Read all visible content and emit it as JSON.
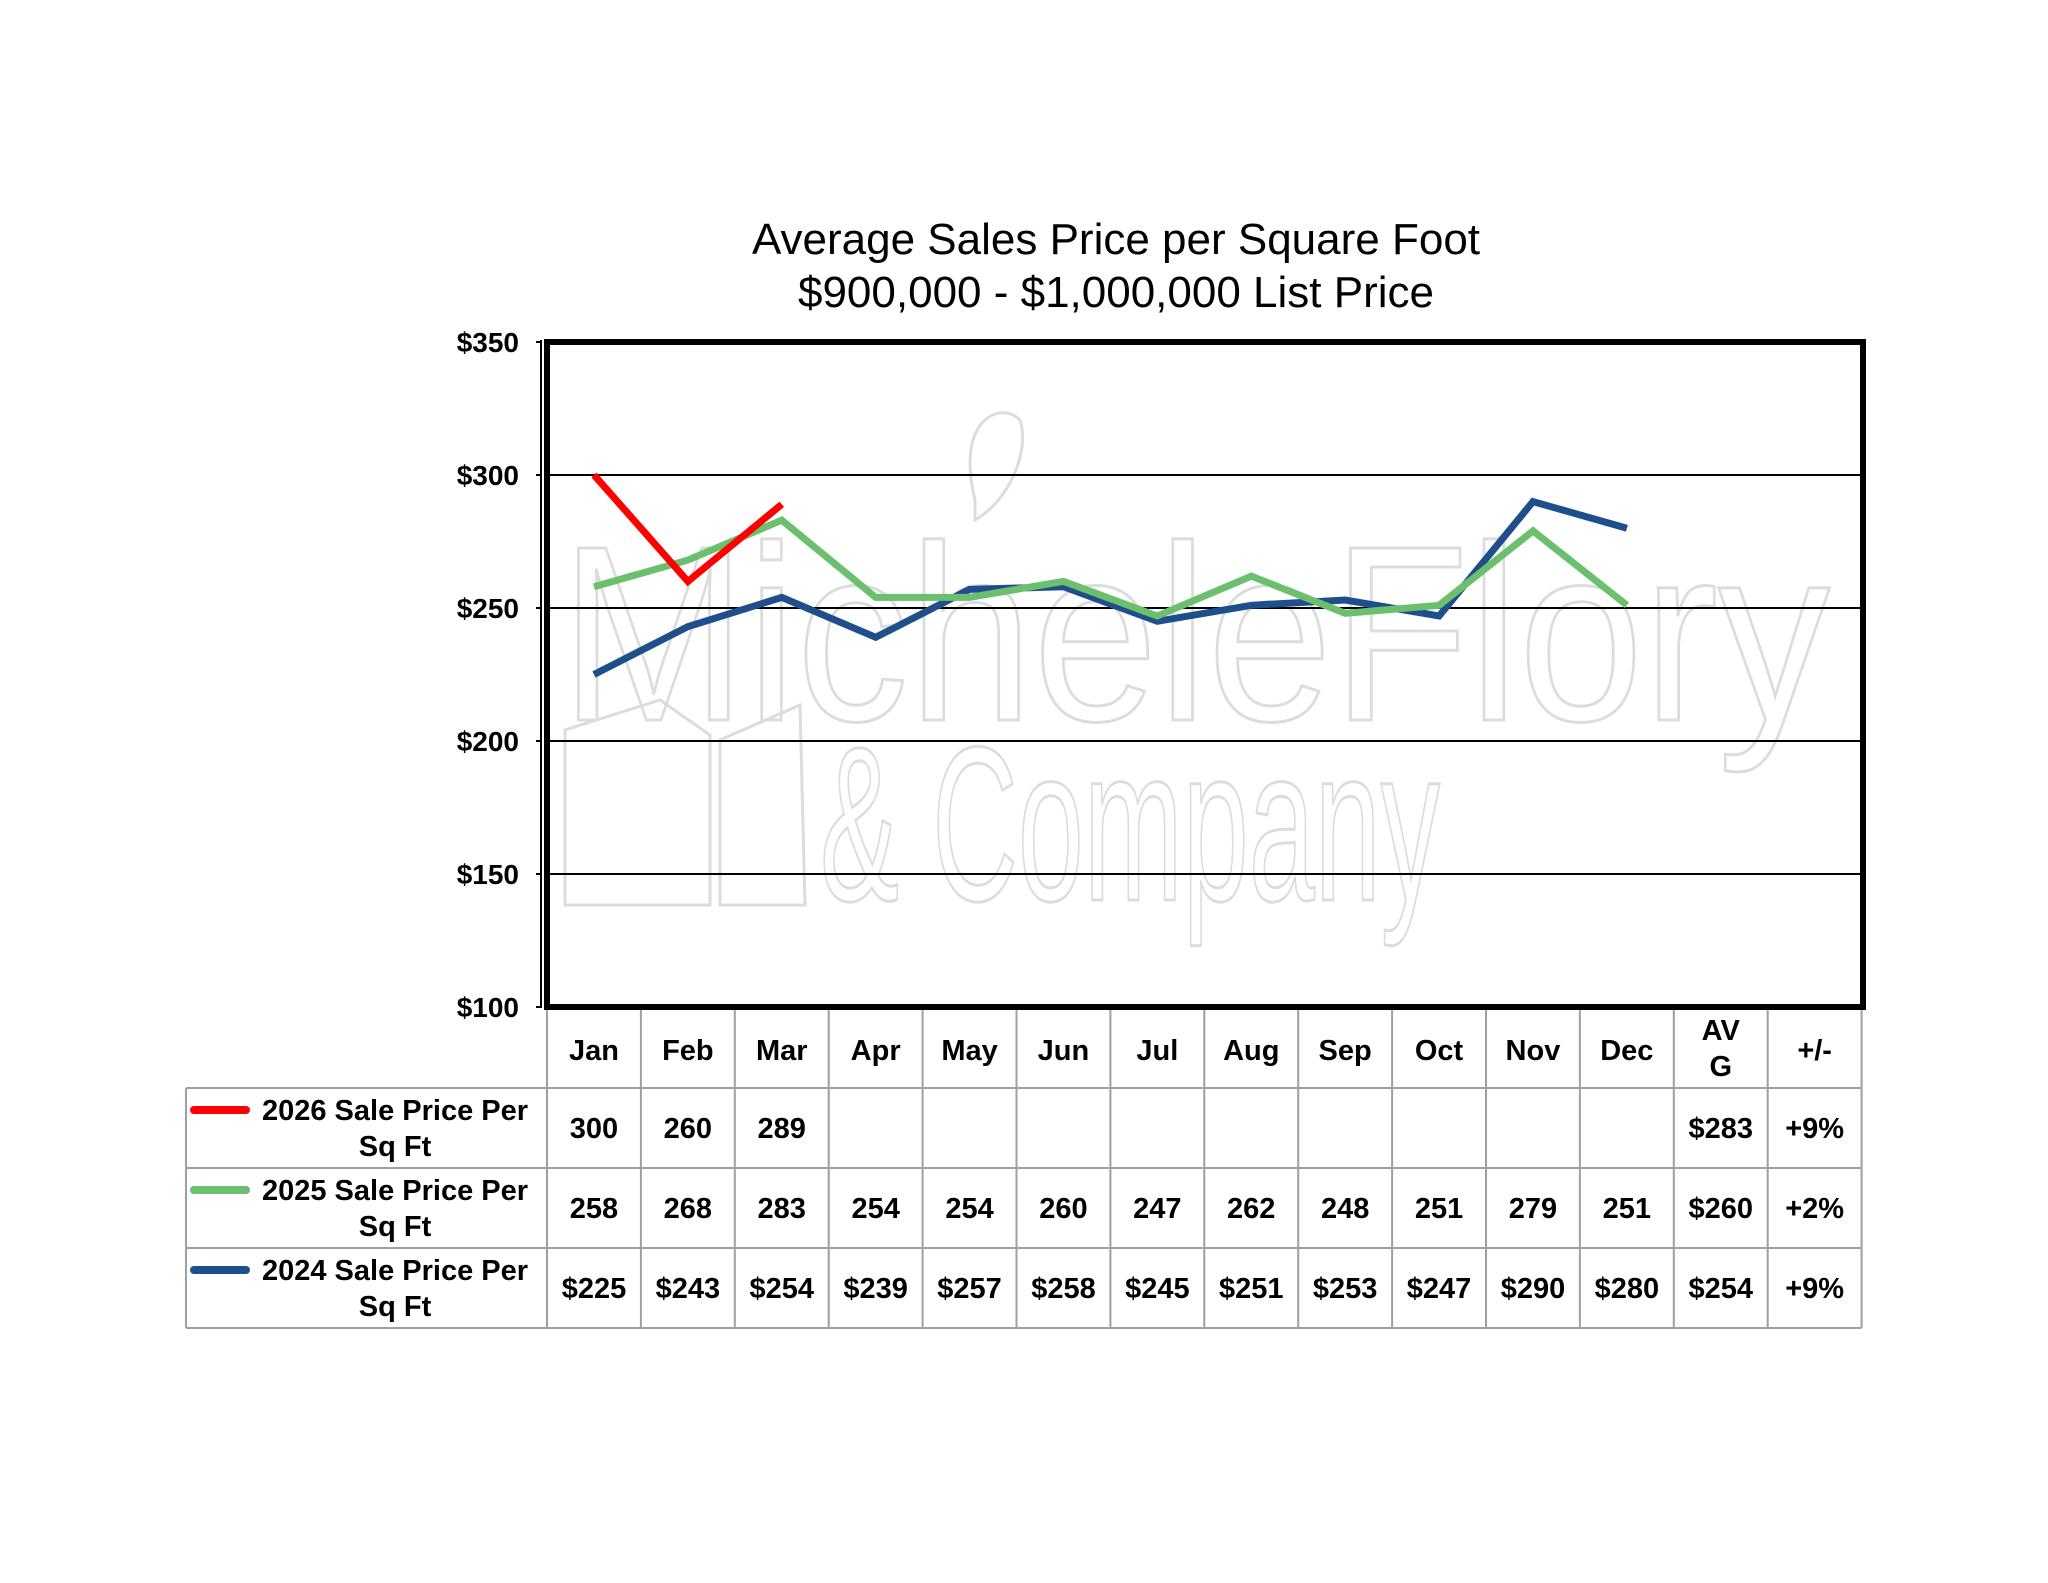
{
  "watermark": {
    "line1": "MicheleFlory",
    "line2": "& Company"
  },
  "chart_data": {
    "type": "line",
    "title": "Average Sales Price per Square Foot",
    "subtitle": "$900,000 - $1,000,000 List Price",
    "categories": [
      "Jan",
      "Feb",
      "Mar",
      "Apr",
      "May",
      "Jun",
      "Jul",
      "Aug",
      "Sep",
      "Oct",
      "Nov",
      "Dec"
    ],
    "ylim": [
      100,
      350
    ],
    "yticks": [
      100,
      150,
      200,
      250,
      300,
      350
    ],
    "ytick_labels": [
      "$100",
      "$150",
      "$200",
      "$250",
      "$300",
      "$350"
    ],
    "grid": true,
    "series": [
      {
        "name": "2026 Sale Price Per Sq Ft",
        "color": "#ff0000",
        "values": [
          300,
          260,
          289,
          null,
          null,
          null,
          null,
          null,
          null,
          null,
          null,
          null
        ],
        "table_values": [
          "300",
          "260",
          "289",
          "",
          "",
          "",
          "",
          "",
          "",
          "",
          "",
          ""
        ],
        "avg": "$283",
        "change": "+9%"
      },
      {
        "name": "2025 Sale Price Per Sq Ft",
        "color": "#6cbf6c",
        "values": [
          258,
          268,
          283,
          254,
          254,
          260,
          247,
          262,
          248,
          251,
          279,
          251
        ],
        "table_values": [
          "258",
          "268",
          "283",
          "254",
          "254",
          "260",
          "247",
          "262",
          "248",
          "251",
          "279",
          "251"
        ],
        "avg": "$260",
        "change": "+2%"
      },
      {
        "name": "2024 Sale Price Per Sq Ft",
        "color": "#1f4e8c",
        "values": [
          225,
          243,
          254,
          239,
          257,
          258,
          245,
          251,
          253,
          247,
          290,
          280
        ],
        "table_values": [
          "$225",
          "$243",
          "$254",
          "$239",
          "$257",
          "$258",
          "$245",
          "$251",
          "$253",
          "$247",
          "$290",
          "$280"
        ],
        "avg": "$254",
        "change": "+9%"
      }
    ],
    "table_headers": {
      "avg_line1": "AV",
      "avg_line2": "G",
      "change": "+/-"
    }
  }
}
